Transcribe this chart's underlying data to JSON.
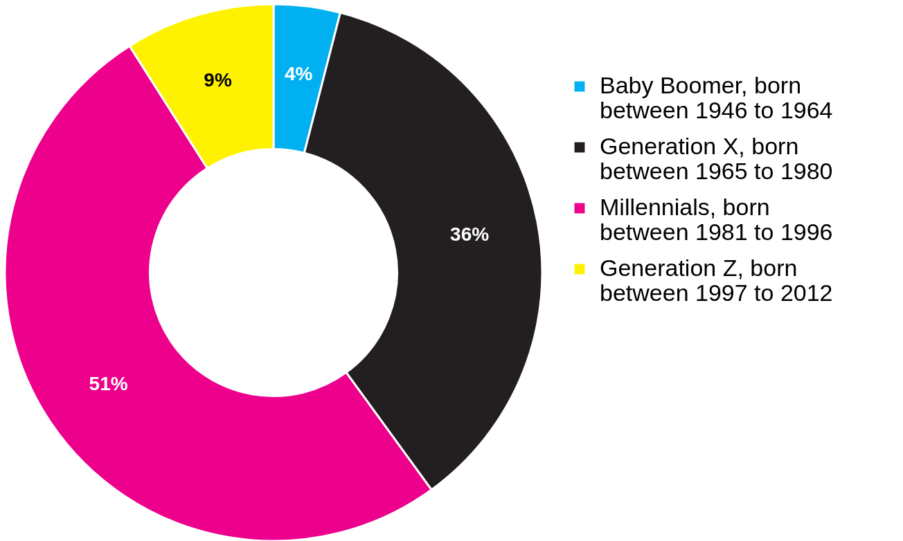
{
  "chart_data": {
    "type": "donut",
    "categories": [
      "Baby Boomer, born\nbetween 1946 to 1964",
      "Generation X, born\nbetween  1965 to 1980",
      "Millennials, born\nbetween 1981 to 1996",
      "Generation Z, born\nbetween 1997 to 2012"
    ],
    "values": [
      4,
      36,
      51,
      9
    ],
    "colors": [
      "#00b0f0",
      "#231f20",
      "#ec008c",
      "#fff200"
    ],
    "value_labels": [
      "4%",
      "36%",
      "51%",
      "9%"
    ],
    "legend": "right"
  }
}
